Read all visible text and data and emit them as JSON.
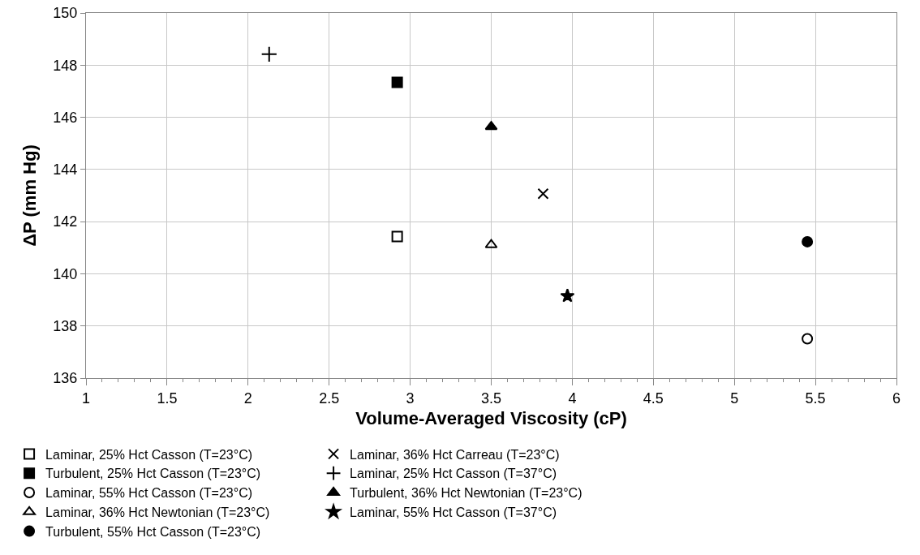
{
  "chart_data": {
    "type": "scatter",
    "xlabel": "Volume-Averaged Viscosity (cP)",
    "ylabel": "ΔP (mm Hg)",
    "xlim": [
      1,
      6
    ],
    "xticks": [
      1,
      1.5,
      2,
      2.5,
      3,
      3.5,
      4,
      4.5,
      5,
      5.5,
      6
    ],
    "ylim": [
      136,
      150
    ],
    "yticks": [
      136,
      138,
      140,
      142,
      144,
      146,
      148,
      150
    ],
    "grid": true,
    "legend": "bottom",
    "series": [
      {
        "name": "Laminar, 25% Hct Casson (T=23°C)",
        "color": "#000000",
        "marker": "square-open",
        "x": [
          2.92
        ],
        "values": [
          141.43
        ]
      },
      {
        "name": "Laminar, 36% Hct Carreau (T=23°C)",
        "color": "#000000",
        "marker": "x",
        "x": [
          3.82
        ],
        "values": [
          143.07
        ]
      },
      {
        "name": "Turbulent, 25% Hct Casson (T=23°C)",
        "color": "#000000",
        "marker": "square",
        "x": [
          2.92
        ],
        "values": [
          147.34
        ]
      },
      {
        "name": "Laminar, 25% Hct Casson (T=37°C)",
        "color": "#000000",
        "marker": "cross",
        "x": [
          2.13
        ],
        "values": [
          148.42
        ]
      },
      {
        "name": "Laminar, 55% Hct Casson (T=23°C)",
        "color": "#000000",
        "marker": "circle-open",
        "x": [
          5.45
        ],
        "values": [
          137.51
        ]
      },
      {
        "name": "Turbulent, 36% Hct Newtonian (T=23°C)",
        "color": "#000000",
        "marker": "triangle",
        "x": [
          3.5
        ],
        "values": [
          145.64
        ]
      },
      {
        "name": "Laminar, 36% Hct Newtonian (T=23°C)",
        "color": "#000000",
        "marker": "triangle-open",
        "x": [
          3.5
        ],
        "values": [
          141.11
        ]
      },
      {
        "name": "Laminar, 55% Hct Casson (T=37°C)",
        "color": "#000000",
        "marker": "star",
        "x": [
          3.97
        ],
        "values": [
          139.15
        ]
      },
      {
        "name": "Turbulent, 55% Hct Casson (T=23°C)",
        "color": "#000000",
        "marker": "circle",
        "x": [
          5.45
        ],
        "values": [
          141.23
        ]
      }
    ]
  }
}
